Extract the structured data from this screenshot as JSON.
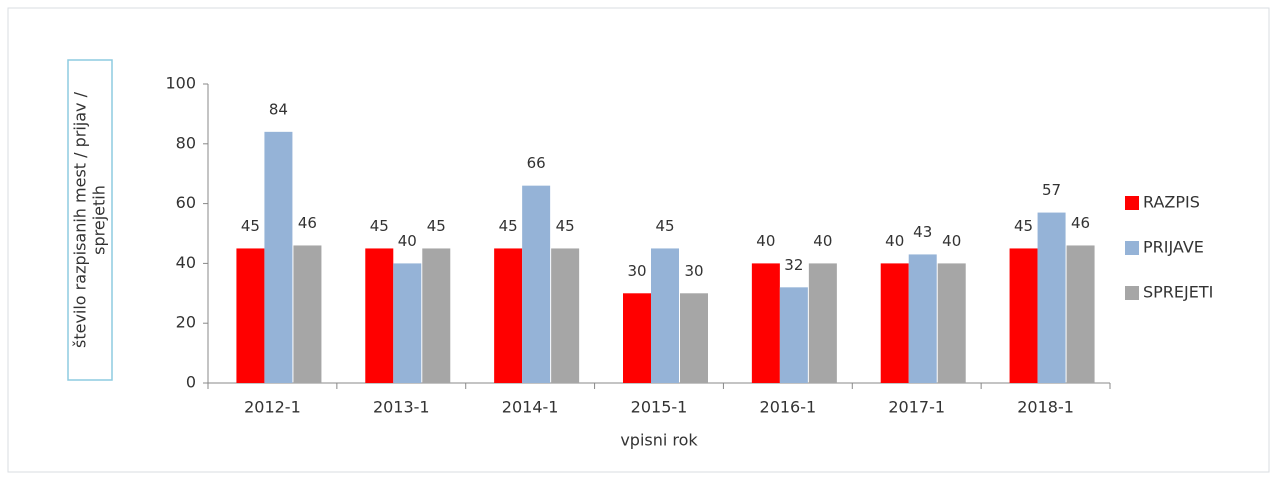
{
  "chart_data": {
    "type": "bar",
    "categories": [
      "2012-1",
      "2013-1",
      "2014-1",
      "2015-1",
      "2016-1",
      "2017-1",
      "2018-1"
    ],
    "series": [
      {
        "name": "RAZPIS",
        "color": "#ff0000",
        "values": [
          45,
          45,
          45,
          30,
          40,
          40,
          45
        ]
      },
      {
        "name": "PRIJAVE",
        "color": "#95b3d7",
        "values": [
          84,
          40,
          66,
          45,
          32,
          43,
          57
        ]
      },
      {
        "name": "SPREJETI",
        "color": "#a6a6a6",
        "values": [
          46,
          45,
          45,
          30,
          40,
          40,
          46
        ]
      }
    ],
    "xlabel": "vpisni rok",
    "ylabel": "število razpisanih mest / prijav / sprejetih",
    "ylim": [
      0,
      100
    ],
    "yticks": [
      0,
      20,
      40,
      60,
      80,
      100
    ],
    "legend": "right"
  }
}
